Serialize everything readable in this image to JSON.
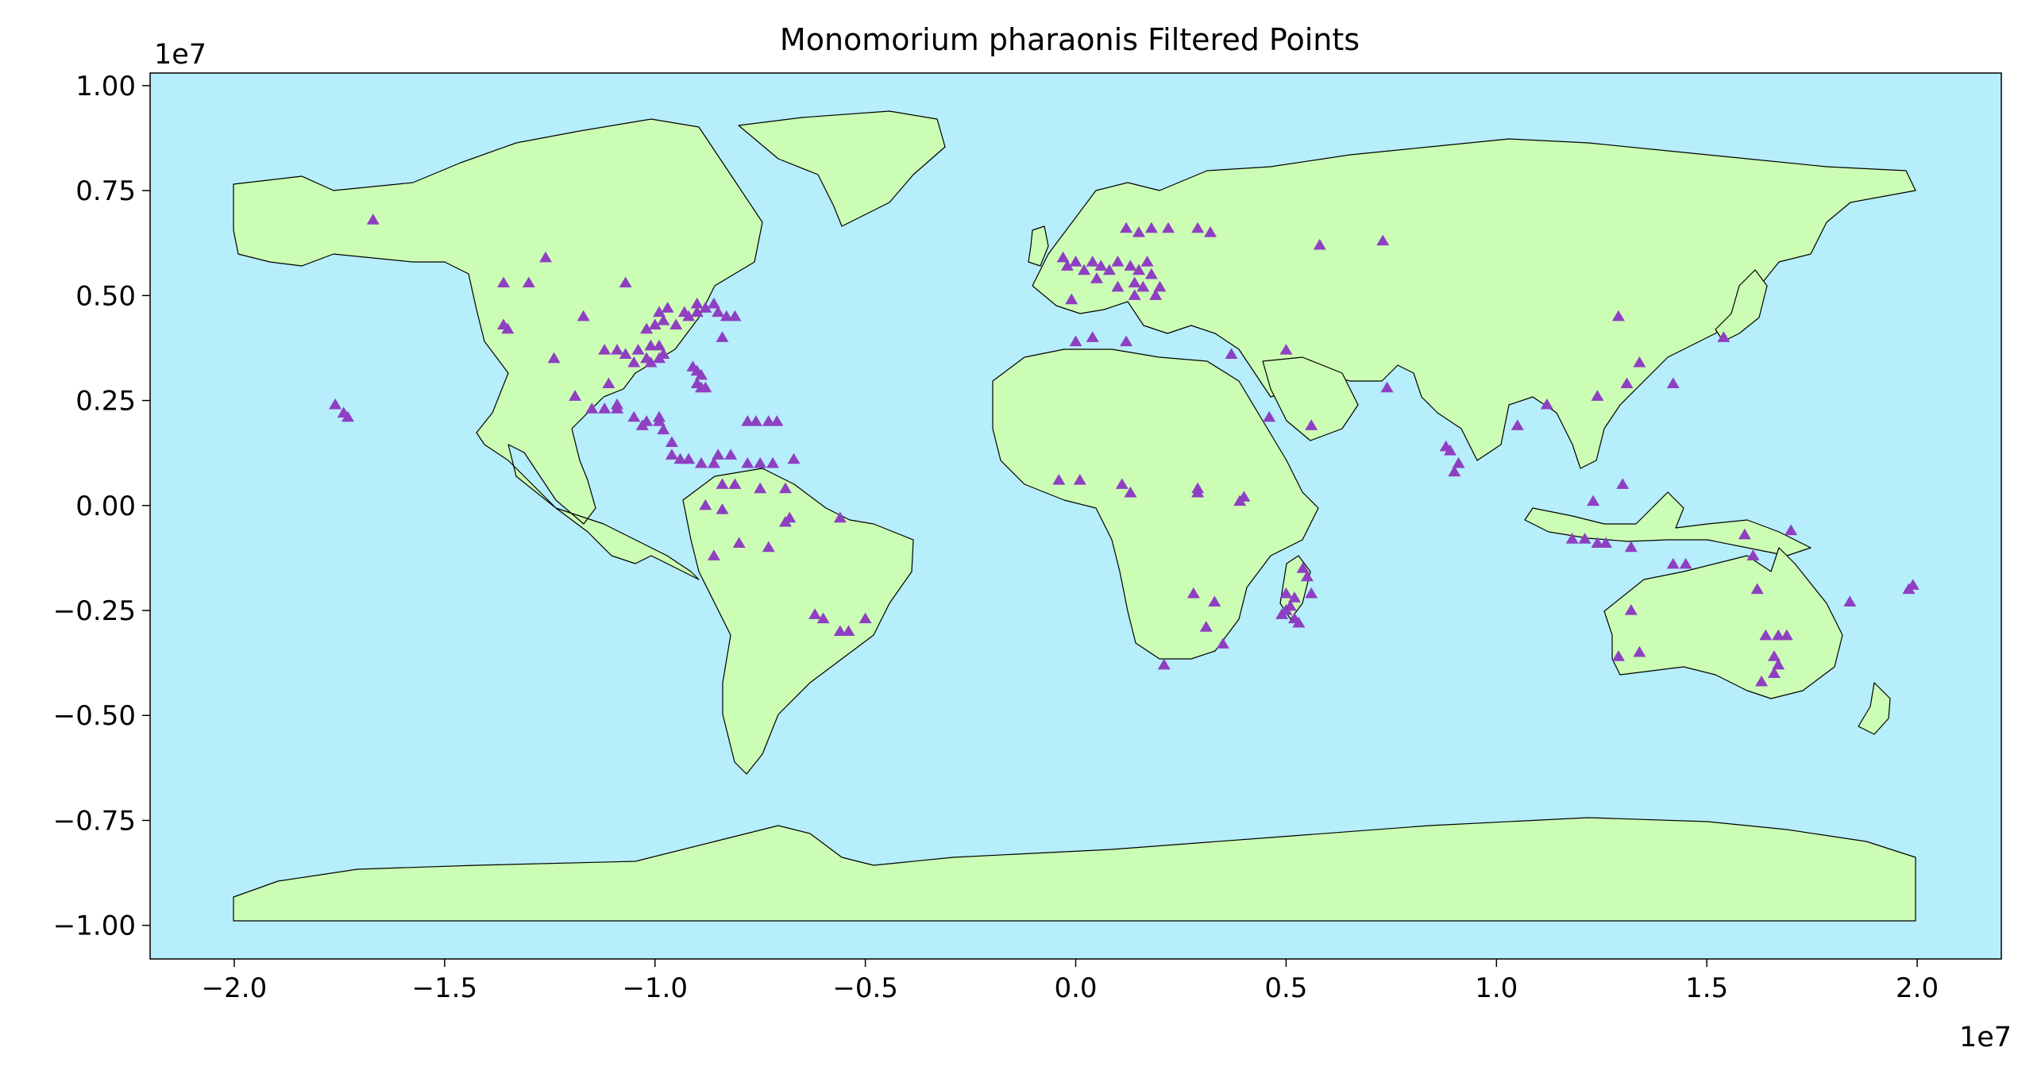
{
  "title": "Monomorium pharaonis Filtered Points",
  "x_offset_label": "1e7",
  "y_offset_label": "1e7",
  "colors": {
    "ocean": "#b6eefb",
    "land": "#ccfdb4",
    "border": "#000000",
    "marker": "#8f3fc2"
  },
  "chart_data": {
    "type": "scatter",
    "marker": "triangle",
    "xlim": [
      -2.2,
      2.2
    ],
    "ylim": [
      -1.08,
      1.03
    ],
    "xticks": [
      -2.0,
      -1.5,
      -1.0,
      -0.5,
      0.0,
      0.5,
      1.0,
      1.5,
      2.0
    ],
    "yticks": [
      -1.0,
      -0.75,
      -0.5,
      -0.25,
      0.0,
      0.25,
      0.5,
      0.75,
      1.0
    ],
    "xtick_labels": [
      "−2.0",
      "−1.5",
      "−1.0",
      "−0.5",
      "0.0",
      "0.5",
      "1.0",
      "1.5",
      "2.0"
    ],
    "ytick_labels": [
      "−1.00",
      "−0.75",
      "−0.50",
      "−0.25",
      "0.00",
      "0.25",
      "0.50",
      "0.75",
      "1.00"
    ],
    "points": [
      [
        -1.67,
        0.68
      ],
      [
        -1.26,
        0.59
      ],
      [
        -1.36,
        0.53
      ],
      [
        -1.3,
        0.53
      ],
      [
        -1.35,
        0.42
      ],
      [
        -1.36,
        0.43
      ],
      [
        -1.07,
        0.53
      ],
      [
        -1.17,
        0.45
      ],
      [
        -1.24,
        0.35
      ],
      [
        -1.12,
        0.37
      ],
      [
        -1.09,
        0.37
      ],
      [
        -1.07,
        0.36
      ],
      [
        -1.04,
        0.37
      ],
      [
        -1.01,
        0.38
      ],
      [
        -0.99,
        0.38
      ],
      [
        -1.02,
        0.35
      ],
      [
        -0.98,
        0.36
      ],
      [
        -1.05,
        0.34
      ],
      [
        -1.01,
        0.34
      ],
      [
        -0.99,
        0.35
      ],
      [
        -1.02,
        0.42
      ],
      [
        -1.0,
        0.43
      ],
      [
        -0.98,
        0.44
      ],
      [
        -0.99,
        0.46
      ],
      [
        -0.97,
        0.47
      ],
      [
        -0.95,
        0.43
      ],
      [
        -0.92,
        0.45
      ],
      [
        -0.9,
        0.46
      ],
      [
        -0.88,
        0.47
      ],
      [
        -0.86,
        0.48
      ],
      [
        -0.85,
        0.46
      ],
      [
        -0.83,
        0.45
      ],
      [
        -0.81,
        0.45
      ],
      [
        -0.84,
        0.4
      ],
      [
        -0.93,
        0.46
      ],
      [
        -0.9,
        0.48
      ],
      [
        -0.91,
        0.33
      ],
      [
        -0.9,
        0.32
      ],
      [
        -0.89,
        0.31
      ],
      [
        -0.9,
        0.29
      ],
      [
        -0.89,
        0.28
      ],
      [
        -0.88,
        0.28
      ],
      [
        -1.11,
        0.29
      ],
      [
        -1.09,
        0.24
      ],
      [
        -1.15,
        0.23
      ],
      [
        -1.12,
        0.23
      ],
      [
        -1.09,
        0.23
      ],
      [
        -1.19,
        0.26
      ],
      [
        -1.05,
        0.21
      ],
      [
        -1.02,
        0.2
      ],
      [
        -0.99,
        0.21
      ],
      [
        -1.03,
        0.19
      ],
      [
        -0.99,
        0.2
      ],
      [
        -0.98,
        0.18
      ],
      [
        -0.96,
        0.15
      ],
      [
        -0.96,
        0.12
      ],
      [
        -0.94,
        0.11
      ],
      [
        -0.92,
        0.11
      ],
      [
        -0.89,
        0.1
      ],
      [
        -0.86,
        0.1
      ],
      [
        -0.85,
        0.12
      ],
      [
        -0.82,
        0.12
      ],
      [
        -0.84,
        0.05
      ],
      [
        -0.81,
        0.05
      ],
      [
        -0.78,
        0.1
      ],
      [
        -0.75,
        0.1
      ],
      [
        -0.72,
        0.1
      ],
      [
        -0.67,
        0.11
      ],
      [
        -0.69,
        0.04
      ],
      [
        -0.75,
        0.04
      ],
      [
        -0.78,
        0.2
      ],
      [
        -0.76,
        0.2
      ],
      [
        -0.73,
        0.2
      ],
      [
        -0.71,
        0.2
      ],
      [
        -0.88,
        -0.0
      ],
      [
        -0.84,
        -0.01
      ],
      [
        -0.8,
        -0.09
      ],
      [
        -0.73,
        -0.1
      ],
      [
        -0.86,
        -0.12
      ],
      [
        -0.68,
        -0.03
      ],
      [
        -0.69,
        -0.04
      ],
      [
        -0.56,
        -0.03
      ],
      [
        -0.62,
        -0.26
      ],
      [
        -0.6,
        -0.27
      ],
      [
        -0.56,
        -0.3
      ],
      [
        -0.54,
        -0.3
      ],
      [
        -0.5,
        -0.27
      ],
      [
        -1.76,
        0.24
      ],
      [
        -1.74,
        0.22
      ],
      [
        -1.73,
        0.21
      ],
      [
        -0.03,
        0.59
      ],
      [
        -0.02,
        0.57
      ],
      [
        0.0,
        0.58
      ],
      [
        0.02,
        0.56
      ],
      [
        0.04,
        0.58
      ],
      [
        0.06,
        0.57
      ],
      [
        0.08,
        0.56
      ],
      [
        0.1,
        0.58
      ],
      [
        0.13,
        0.57
      ],
      [
        0.15,
        0.56
      ],
      [
        0.17,
        0.58
      ],
      [
        0.05,
        0.54
      ],
      [
        0.1,
        0.52
      ],
      [
        0.14,
        0.53
      ],
      [
        0.16,
        0.52
      ],
      [
        0.18,
        0.55
      ],
      [
        0.2,
        0.52
      ],
      [
        -0.01,
        0.49
      ],
      [
        0.14,
        0.5
      ],
      [
        0.19,
        0.5
      ],
      [
        0.12,
        0.66
      ],
      [
        0.15,
        0.65
      ],
      [
        0.18,
        0.66
      ],
      [
        0.22,
        0.66
      ],
      [
        0.29,
        0.66
      ],
      [
        0.32,
        0.65
      ],
      [
        0.0,
        0.39
      ],
      [
        0.04,
        0.4
      ],
      [
        0.12,
        0.39
      ],
      [
        0.37,
        0.36
      ],
      [
        0.5,
        0.37
      ],
      [
        0.58,
        0.62
      ],
      [
        0.73,
        0.63
      ],
      [
        0.56,
        0.19
      ],
      [
        0.46,
        0.21
      ],
      [
        0.74,
        0.28
      ],
      [
        -0.04,
        0.06
      ],
      [
        0.01,
        0.06
      ],
      [
        0.11,
        0.05
      ],
      [
        0.13,
        0.03
      ],
      [
        0.29,
        0.03
      ],
      [
        0.29,
        0.04
      ],
      [
        0.39,
        0.01
      ],
      [
        0.4,
        0.02
      ],
      [
        0.28,
        -0.21
      ],
      [
        0.33,
        -0.23
      ],
      [
        0.31,
        -0.29
      ],
      [
        0.35,
        -0.33
      ],
      [
        0.21,
        -0.38
      ],
      [
        0.5,
        -0.21
      ],
      [
        0.51,
        -0.24
      ],
      [
        0.52,
        -0.22
      ],
      [
        0.54,
        -0.15
      ],
      [
        0.55,
        -0.17
      ],
      [
        0.56,
        -0.21
      ],
      [
        0.49,
        -0.26
      ],
      [
        0.5,
        -0.25
      ],
      [
        0.52,
        -0.27
      ],
      [
        0.53,
        -0.28
      ],
      [
        0.88,
        0.14
      ],
      [
        0.89,
        0.13
      ],
      [
        0.91,
        0.1
      ],
      [
        0.9,
        0.08
      ],
      [
        1.05,
        0.19
      ],
      [
        1.12,
        0.24
      ],
      [
        1.24,
        0.26
      ],
      [
        1.31,
        0.29
      ],
      [
        1.29,
        0.45
      ],
      [
        1.34,
        0.34
      ],
      [
        1.42,
        0.29
      ],
      [
        1.54,
        0.4
      ],
      [
        1.23,
        0.01
      ],
      [
        1.3,
        0.05
      ],
      [
        1.18,
        -0.08
      ],
      [
        1.21,
        -0.08
      ],
      [
        1.24,
        -0.09
      ],
      [
        1.26,
        -0.09
      ],
      [
        1.32,
        -0.1
      ],
      [
        1.42,
        -0.14
      ],
      [
        1.45,
        -0.14
      ],
      [
        1.61,
        -0.12
      ],
      [
        1.62,
        -0.2
      ],
      [
        1.7,
        -0.06
      ],
      [
        1.59,
        -0.07
      ],
      [
        1.32,
        -0.25
      ],
      [
        1.29,
        -0.36
      ],
      [
        1.34,
        -0.35
      ],
      [
        1.64,
        -0.31
      ],
      [
        1.67,
        -0.31
      ],
      [
        1.69,
        -0.31
      ],
      [
        1.66,
        -0.36
      ],
      [
        1.67,
        -0.38
      ],
      [
        1.63,
        -0.42
      ],
      [
        1.66,
        -0.4
      ],
      [
        1.84,
        -0.23
      ],
      [
        1.98,
        -0.2
      ],
      [
        1.99,
        -0.19
      ]
    ]
  }
}
